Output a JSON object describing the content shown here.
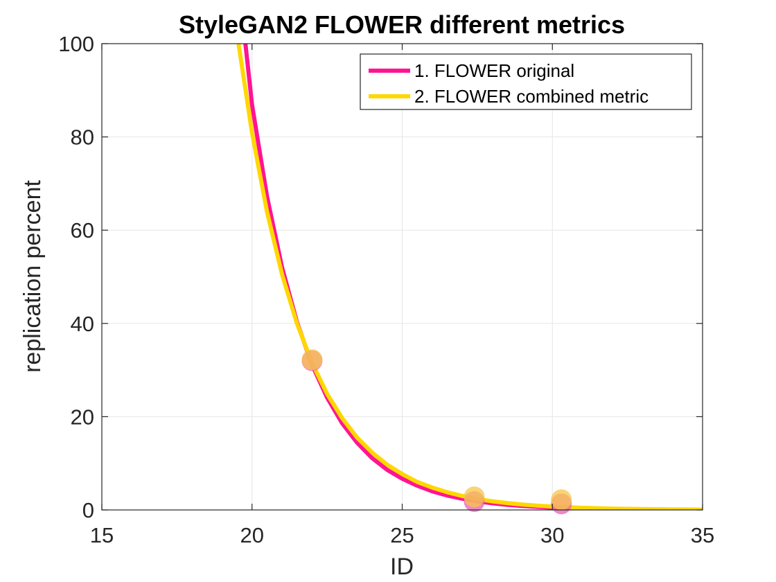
{
  "chart_data": {
    "type": "line",
    "title": "StyleGAN2 FLOWER different metrics",
    "xlabel": "ID",
    "ylabel": "replication percent",
    "xlim": [
      15,
      35
    ],
    "ylim": [
      0,
      100
    ],
    "xticks": [
      15,
      20,
      25,
      30,
      35
    ],
    "yticks": [
      0,
      20,
      40,
      60,
      80,
      100
    ],
    "xtick_labels": [
      "15",
      "20",
      "25",
      "30",
      "35"
    ],
    "ytick_labels": [
      "0",
      "20",
      "40",
      "60",
      "80",
      "100"
    ],
    "grid": true,
    "legend_position": "top-right",
    "series": [
      {
        "name": "1. FLOWER original",
        "color": "#ff1493",
        "marker_color": "#e75fb4",
        "points": [
          {
            "x": 22.0,
            "y": 32.0
          },
          {
            "x": 27.4,
            "y": 1.8
          },
          {
            "x": 30.3,
            "y": 1.3
          }
        ],
        "fit_curve": [
          {
            "x": 19.78,
            "y": 100.0
          },
          {
            "x": 20.0,
            "y": 86.9
          },
          {
            "x": 20.5,
            "y": 67.2
          },
          {
            "x": 21.0,
            "y": 52.0
          },
          {
            "x": 21.5,
            "y": 40.2
          },
          {
            "x": 22.0,
            "y": 31.1
          },
          {
            "x": 22.5,
            "y": 24.1
          },
          {
            "x": 23.0,
            "y": 18.6
          },
          {
            "x": 23.5,
            "y": 14.4
          },
          {
            "x": 24.0,
            "y": 11.1
          },
          {
            "x": 24.5,
            "y": 8.6
          },
          {
            "x": 25.0,
            "y": 6.7
          },
          {
            "x": 25.5,
            "y": 5.2
          },
          {
            "x": 26.0,
            "y": 4.0
          },
          {
            "x": 26.5,
            "y": 3.1
          },
          {
            "x": 27.0,
            "y": 2.4
          },
          {
            "x": 27.5,
            "y": 1.85
          },
          {
            "x": 28.0,
            "y": 1.43
          },
          {
            "x": 28.5,
            "y": 1.1
          },
          {
            "x": 29.0,
            "y": 0.86
          },
          {
            "x": 29.5,
            "y": 0.66
          },
          {
            "x": 30.0,
            "y": 0.51
          },
          {
            "x": 31.0,
            "y": 0.31
          },
          {
            "x": 32.0,
            "y": 0.18
          },
          {
            "x": 33.0,
            "y": 0.11
          },
          {
            "x": 34.0,
            "y": 0.07
          },
          {
            "x": 35.0,
            "y": 0.04
          }
        ]
      },
      {
        "name": "2. FLOWER combined metric",
        "color": "#ffd700",
        "marker_color": "#f7c64a",
        "points": [
          {
            "x": 22.0,
            "y": 32.2
          },
          {
            "x": 27.4,
            "y": 2.8
          },
          {
            "x": 30.3,
            "y": 2.2
          }
        ],
        "fit_curve": [
          {
            "x": 19.55,
            "y": 100.0
          },
          {
            "x": 20.0,
            "y": 80.9
          },
          {
            "x": 20.5,
            "y": 63.9
          },
          {
            "x": 21.0,
            "y": 50.5
          },
          {
            "x": 21.5,
            "y": 39.9
          },
          {
            "x": 22.0,
            "y": 31.5
          },
          {
            "x": 22.5,
            "y": 24.9
          },
          {
            "x": 23.0,
            "y": 19.7
          },
          {
            "x": 23.5,
            "y": 15.5
          },
          {
            "x": 24.0,
            "y": 12.3
          },
          {
            "x": 24.5,
            "y": 9.7
          },
          {
            "x": 25.0,
            "y": 7.7
          },
          {
            "x": 25.5,
            "y": 6.0
          },
          {
            "x": 26.0,
            "y": 4.8
          },
          {
            "x": 26.5,
            "y": 3.8
          },
          {
            "x": 27.0,
            "y": 3.0
          },
          {
            "x": 27.5,
            "y": 2.35
          },
          {
            "x": 28.0,
            "y": 1.86
          },
          {
            "x": 28.5,
            "y": 1.47
          },
          {
            "x": 29.0,
            "y": 1.16
          },
          {
            "x": 29.5,
            "y": 0.92
          },
          {
            "x": 30.0,
            "y": 0.72
          },
          {
            "x": 31.0,
            "y": 0.45
          },
          {
            "x": 32.0,
            "y": 0.28
          },
          {
            "x": 33.0,
            "y": 0.18
          },
          {
            "x": 34.0,
            "y": 0.11
          },
          {
            "x": 35.0,
            "y": 0.07
          }
        ]
      }
    ]
  }
}
